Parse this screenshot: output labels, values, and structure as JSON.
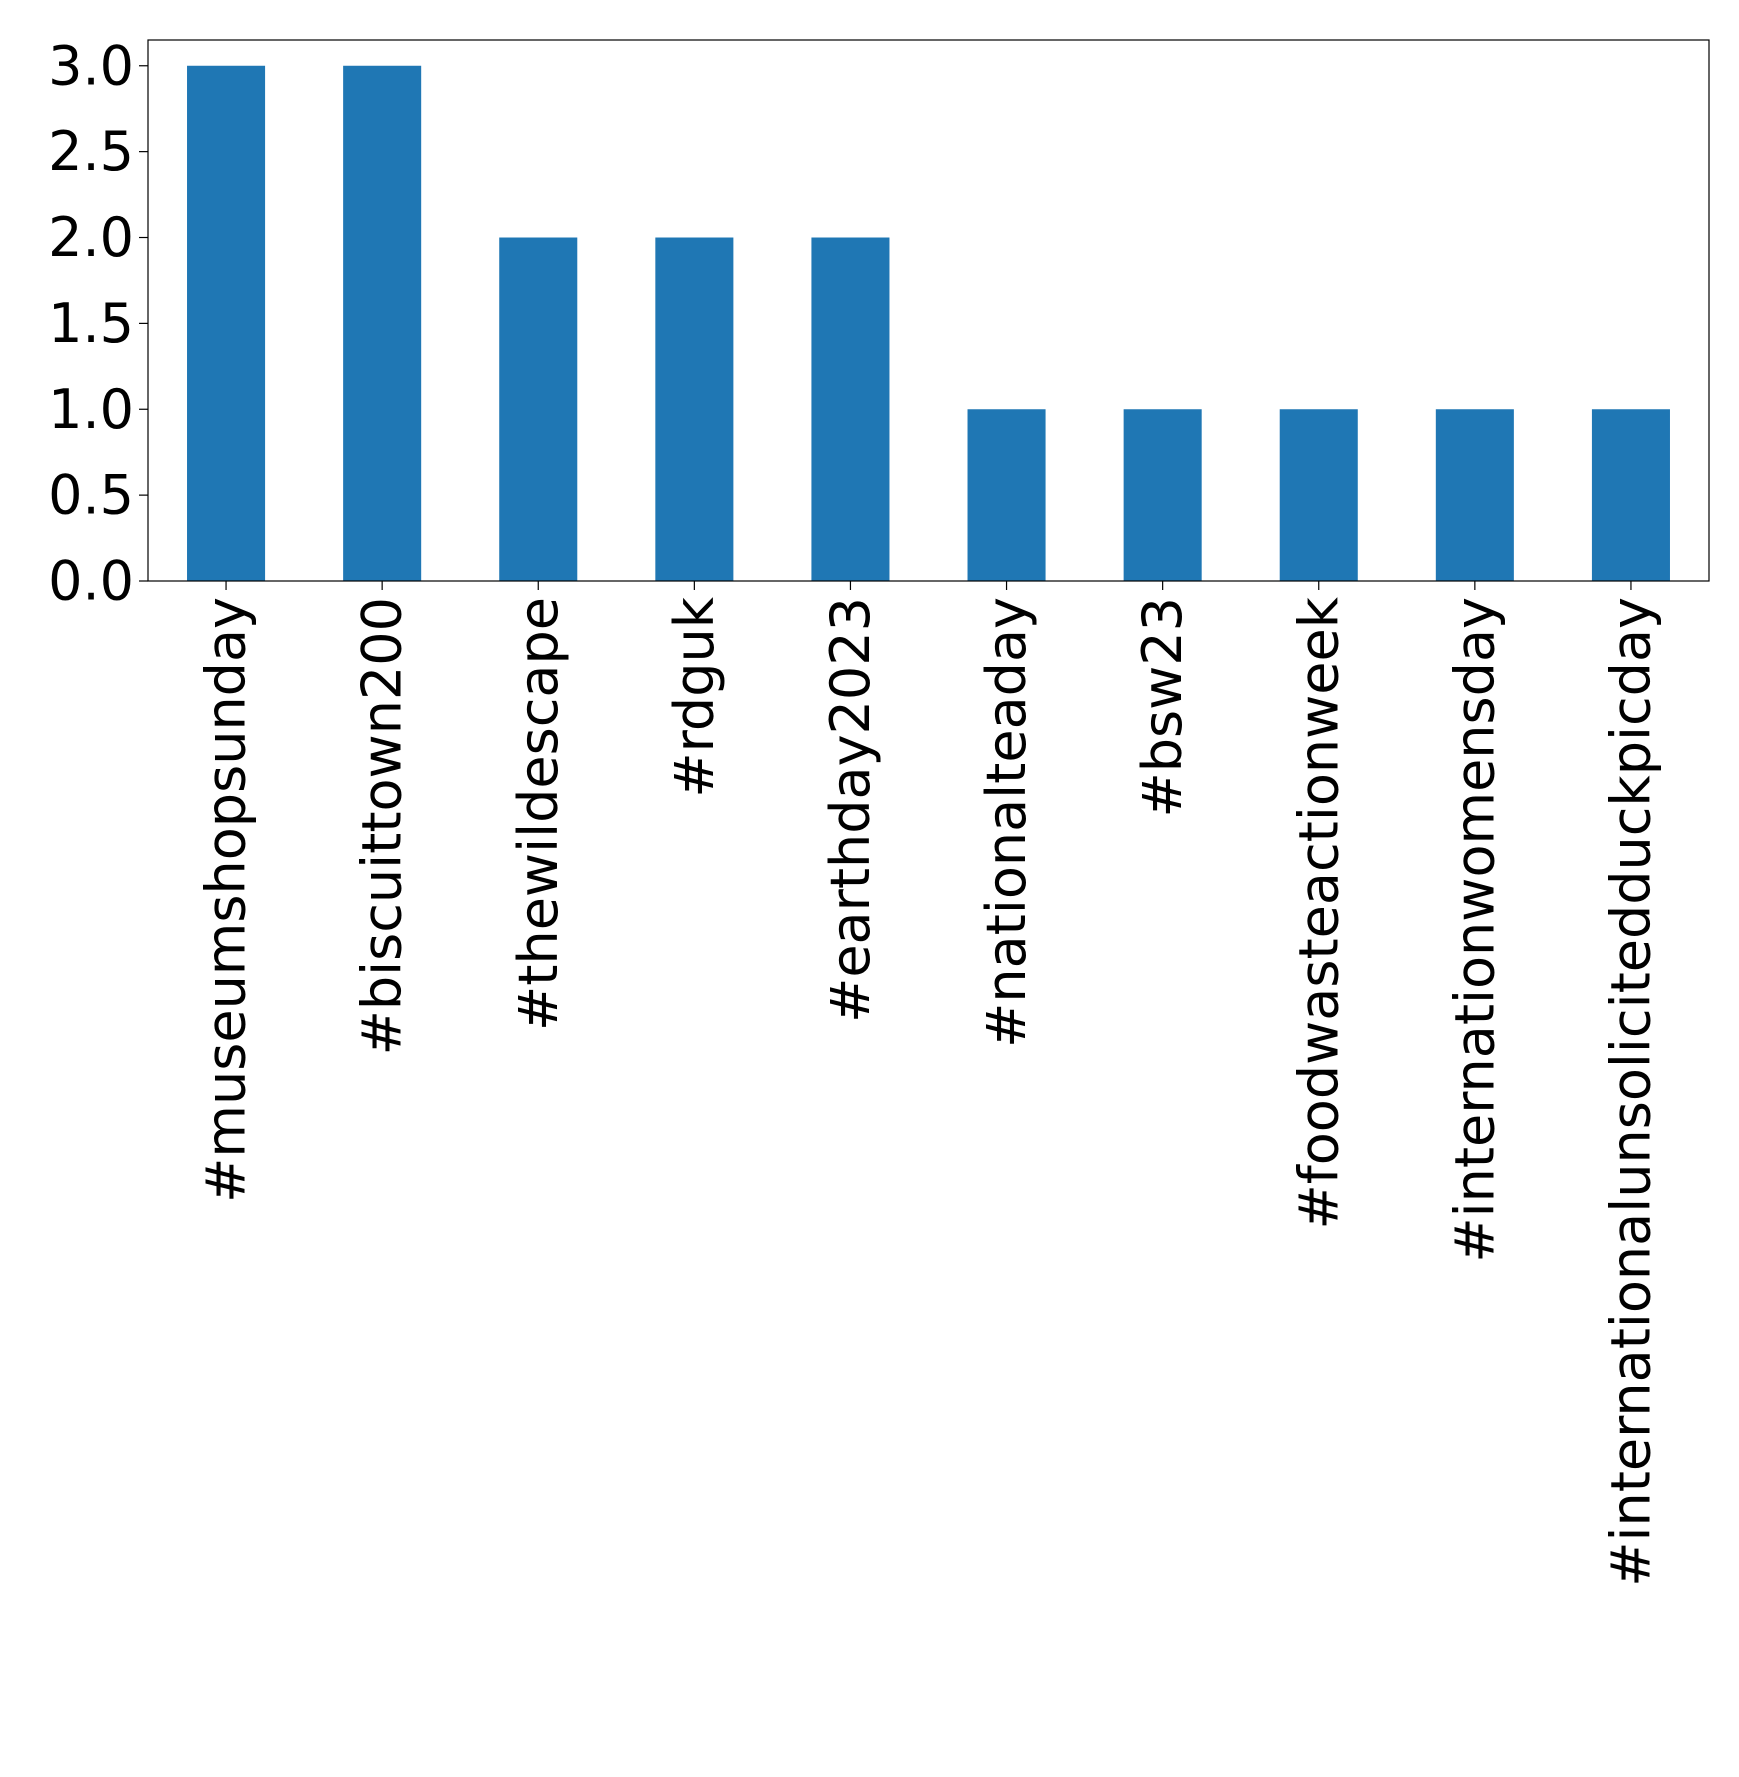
{
  "chart_data": {
    "type": "bar",
    "title": "",
    "xlabel": "",
    "ylabel": "",
    "categories": [
      "#museumshopsunday",
      "#biscuittown200",
      "#thewildescape",
      "#rdguk",
      "#earthday2023",
      "#nationalteaday",
      "#bsw23",
      "#foodwasteactionweek",
      "#internationwomensday",
      "#internationalunsolicitedduckpicday"
    ],
    "values": [
      3,
      3,
      2,
      2,
      2,
      1,
      1,
      1,
      1,
      1
    ],
    "ylim": [
      0,
      3.15
    ],
    "yticks": [
      0.0,
      0.5,
      1.0,
      1.5,
      2.0,
      2.5,
      3.0
    ],
    "ytick_labels": [
      "0.0",
      "0.5",
      "1.0",
      "1.5",
      "2.0",
      "2.5",
      "3.0"
    ],
    "grid": false,
    "legend": "none",
    "colors": {
      "bar": "#1f77b4",
      "axes": "#000000",
      "background": "#ffffff"
    }
  }
}
